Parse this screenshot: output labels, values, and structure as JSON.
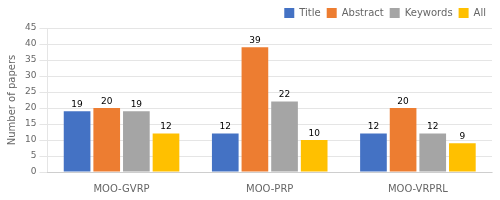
{
  "chart_data": {
    "type": "bar",
    "ylabel": "Number of papers",
    "categories": [
      "MOO-GVRP",
      "MOO-PRP",
      "MOO-VRPRL"
    ],
    "series": [
      {
        "name": "Title",
        "color": "#4472C4",
        "values": [
          19,
          12,
          12
        ]
      },
      {
        "name": "Abstract",
        "color": "#ED7D31",
        "values": [
          20,
          39,
          20
        ]
      },
      {
        "name": "Keywords",
        "color": "#A5A5A5",
        "values": [
          19,
          22,
          12
        ]
      },
      {
        "name": "All",
        "color": "#FFC000",
        "values": [
          12,
          10,
          9
        ]
      }
    ],
    "ylim": [
      0,
      45
    ],
    "yticks": [
      0,
      5,
      10,
      15,
      20,
      25,
      30,
      35,
      40,
      45
    ],
    "grid": "y",
    "legend": "upper right",
    "data_labels": true
  }
}
